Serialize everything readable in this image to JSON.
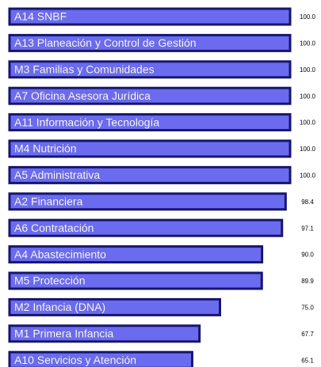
{
  "chart_data": {
    "type": "bar",
    "orientation": "horizontal",
    "categories": [
      "A14 SNBF",
      "A13 Planeación y Control de Gestión",
      "M3 Familias y Comunidades",
      "A7 Oficina Asesora Jurídica",
      "A11 Información y Tecnología",
      "M4 Nutrición",
      "A5 Administrativa",
      "A2 Financiera",
      "A6 Contratación",
      "A4 Abastecimiento",
      "M5 Protección",
      "M2 Infancia (DNA)",
      "M1 Primera Infancia",
      "A10 Servicios y Atención"
    ],
    "values": [
      100,
      100,
      100,
      100,
      100,
      100,
      100,
      98.4,
      97.1,
      90,
      89.9,
      75,
      67.7,
      65.1
    ],
    "value_labels": [
      "100.0",
      "100.0",
      "100.0",
      "100.0",
      "100.0",
      "100.0",
      "100.0",
      "98.4",
      "97.1",
      "90.0",
      "89.9",
      "75.0",
      "67.7",
      "65.1"
    ],
    "color": "#6b6bef",
    "edge_color": "#16166e",
    "xlim": [
      0,
      100
    ]
  }
}
